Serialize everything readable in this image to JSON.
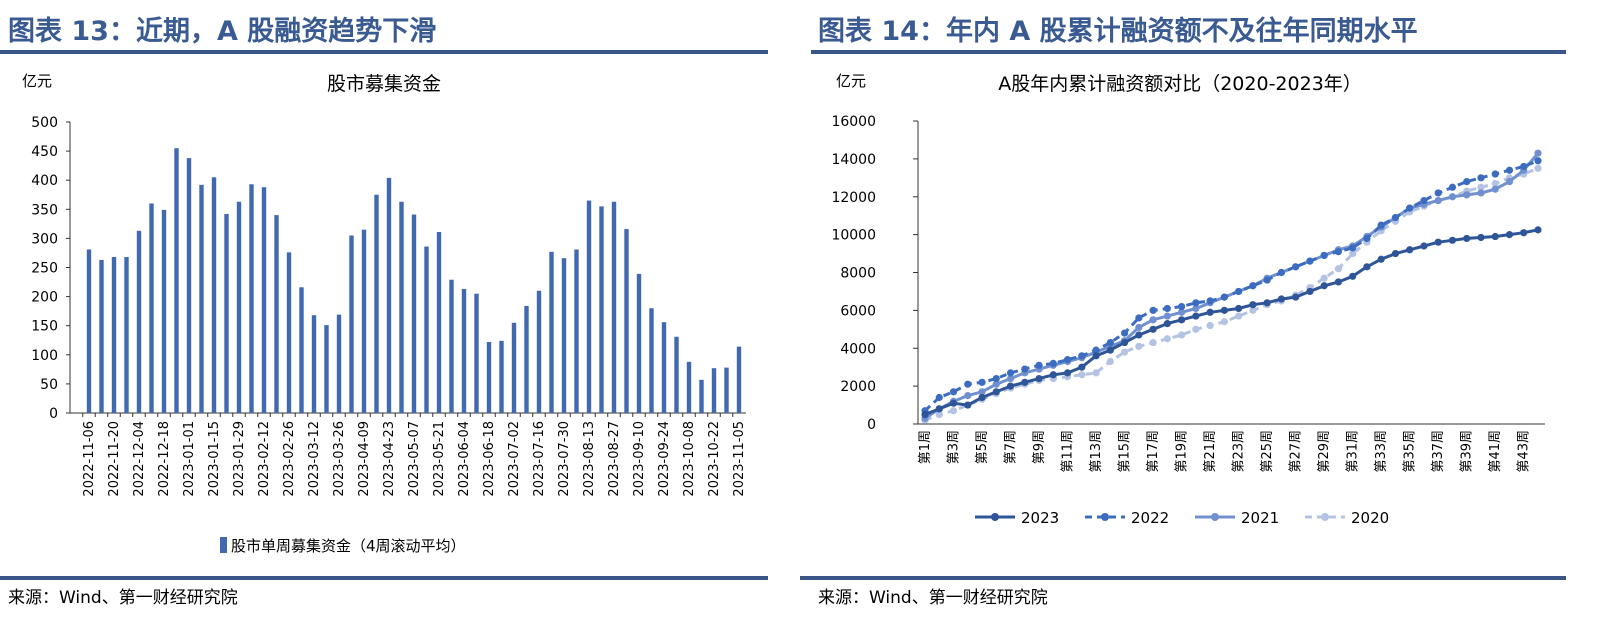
{
  "left": {
    "figure_title": "图表 13：近期，A 股融资趋势下滑",
    "source": "来源：Wind、第一财经研究院"
  },
  "right": {
    "figure_title": "图表 14：年内 A 股累计融资额不及往年同期水平",
    "source": "来源：Wind、第一财经研究院"
  },
  "colors": {
    "title": "#3a5a92",
    "rule": "#3a5689",
    "bar": "#4169b0"
  },
  "chart_data": [
    {
      "type": "bar",
      "title": "股市募集资金",
      "ylabel": "亿元",
      "ylim": [
        0,
        500
      ],
      "yticks": [
        0,
        50,
        100,
        150,
        200,
        250,
        300,
        350,
        400,
        450,
        500
      ],
      "legend": "股市单周募集资金（4周滚动平均）",
      "legend_position": "bottom",
      "grid": false,
      "tick_labels": [
        "2022-11-06",
        "2022-11-20",
        "2022-12-04",
        "2022-12-18",
        "2023-01-01",
        "2023-01-15",
        "2023-01-29",
        "2023-02-12",
        "2023-02-26",
        "2023-03-12",
        "2023-03-26",
        "2023-04-09",
        "2023-04-23",
        "2023-05-07",
        "2023-05-21",
        "2023-06-04",
        "2023-06-18",
        "2023-07-02",
        "2023-07-16",
        "2023-07-30",
        "2023-08-13",
        "2023-08-27",
        "2023-09-10",
        "2023-09-24",
        "2023-10-08",
        "2023-10-22",
        "2023-11-05"
      ],
      "values": [
        281,
        263,
        268,
        268,
        313,
        360,
        349,
        455,
        438,
        392,
        405,
        342,
        363,
        393,
        388,
        340,
        276,
        216,
        168,
        151,
        169,
        305,
        315,
        375,
        404,
        363,
        341,
        286,
        311,
        229,
        213,
        205,
        122,
        124,
        155,
        184,
        210,
        277,
        266,
        281,
        365,
        355,
        363,
        316,
        239,
        180,
        156,
        131,
        88,
        57,
        77,
        78,
        114
      ]
    },
    {
      "type": "line",
      "title": "A股年内累计融资额对比（2020-2023年）",
      "ylabel": "亿元",
      "ylim": [
        0,
        16000
      ],
      "yticks": [
        0,
        2000,
        4000,
        6000,
        8000,
        10000,
        12000,
        14000,
        16000
      ],
      "legend_position": "bottom",
      "grid": false,
      "tick_labels": [
        "第1周",
        "第3周",
        "第5周",
        "第7周",
        "第9周",
        "第11周",
        "第13周",
        "第15周",
        "第17周",
        "第19周",
        "第21周",
        "第23周",
        "第25周",
        "第27周",
        "第29周",
        "第31周",
        "第33周",
        "第35周",
        "第37周",
        "第39周",
        "第41周",
        "第43周"
      ],
      "series": [
        {
          "name": "2023",
          "color": "#2e5597",
          "dashed": false,
          "values": [
            500,
            800,
            1100,
            1000,
            1400,
            1700,
            2000,
            2200,
            2400,
            2600,
            2700,
            3000,
            3600,
            3900,
            4300,
            4700,
            5000,
            5300,
            5500,
            5700,
            5900,
            6000,
            6100,
            6300,
            6400,
            6600,
            6700,
            7000,
            7300,
            7500,
            7800,
            8300,
            8700,
            9000,
            9200,
            9400,
            9600,
            9700,
            9800,
            9850,
            9900,
            10000,
            10100,
            10250
          ]
        },
        {
          "name": "2022",
          "color": "#3b6cc0",
          "dashed": true,
          "values": [
            700,
            1400,
            1700,
            2100,
            2200,
            2400,
            2700,
            2900,
            3100,
            3200,
            3400,
            3600,
            3900,
            4300,
            4800,
            5600,
            6000,
            6100,
            6200,
            6400,
            6500,
            6700,
            7000,
            7300,
            7600,
            8000,
            8300,
            8600,
            8900,
            9100,
            9300,
            9800,
            10500,
            10900,
            11400,
            11800,
            12200,
            12500,
            12800,
            13000,
            13200,
            13400,
            13600,
            13900
          ]
        },
        {
          "name": "2021",
          "color": "#7090cf",
          "dashed": false,
          "values": [
            300,
            800,
            1200,
            1500,
            1700,
            2100,
            2400,
            2700,
            2900,
            3100,
            3300,
            3500,
            3800,
            4100,
            4400,
            5100,
            5500,
            5700,
            5900,
            6100,
            6400,
            6700,
            7000,
            7300,
            7700,
            8000,
            8300,
            8600,
            8900,
            9200,
            9400,
            9900,
            10400,
            10900,
            11400,
            11600,
            11800,
            12000,
            12100,
            12200,
            12400,
            12800,
            13400,
            14300
          ]
        },
        {
          "name": "2020",
          "color": "#b4c3e3",
          "dashed": true,
          "values": [
            200,
            500,
            700,
            1000,
            1300,
            1600,
            1900,
            2100,
            2300,
            2400,
            2500,
            2600,
            2700,
            3300,
            3800,
            4100,
            4300,
            4500,
            4700,
            5000,
            5200,
            5400,
            5700,
            6000,
            6300,
            6500,
            6800,
            7200,
            7700,
            8200,
            9000,
            9600,
            10200,
            10700,
            11200,
            11500,
            11800,
            12000,
            12300,
            12500,
            12700,
            13000,
            13200,
            13500
          ]
        }
      ]
    }
  ]
}
